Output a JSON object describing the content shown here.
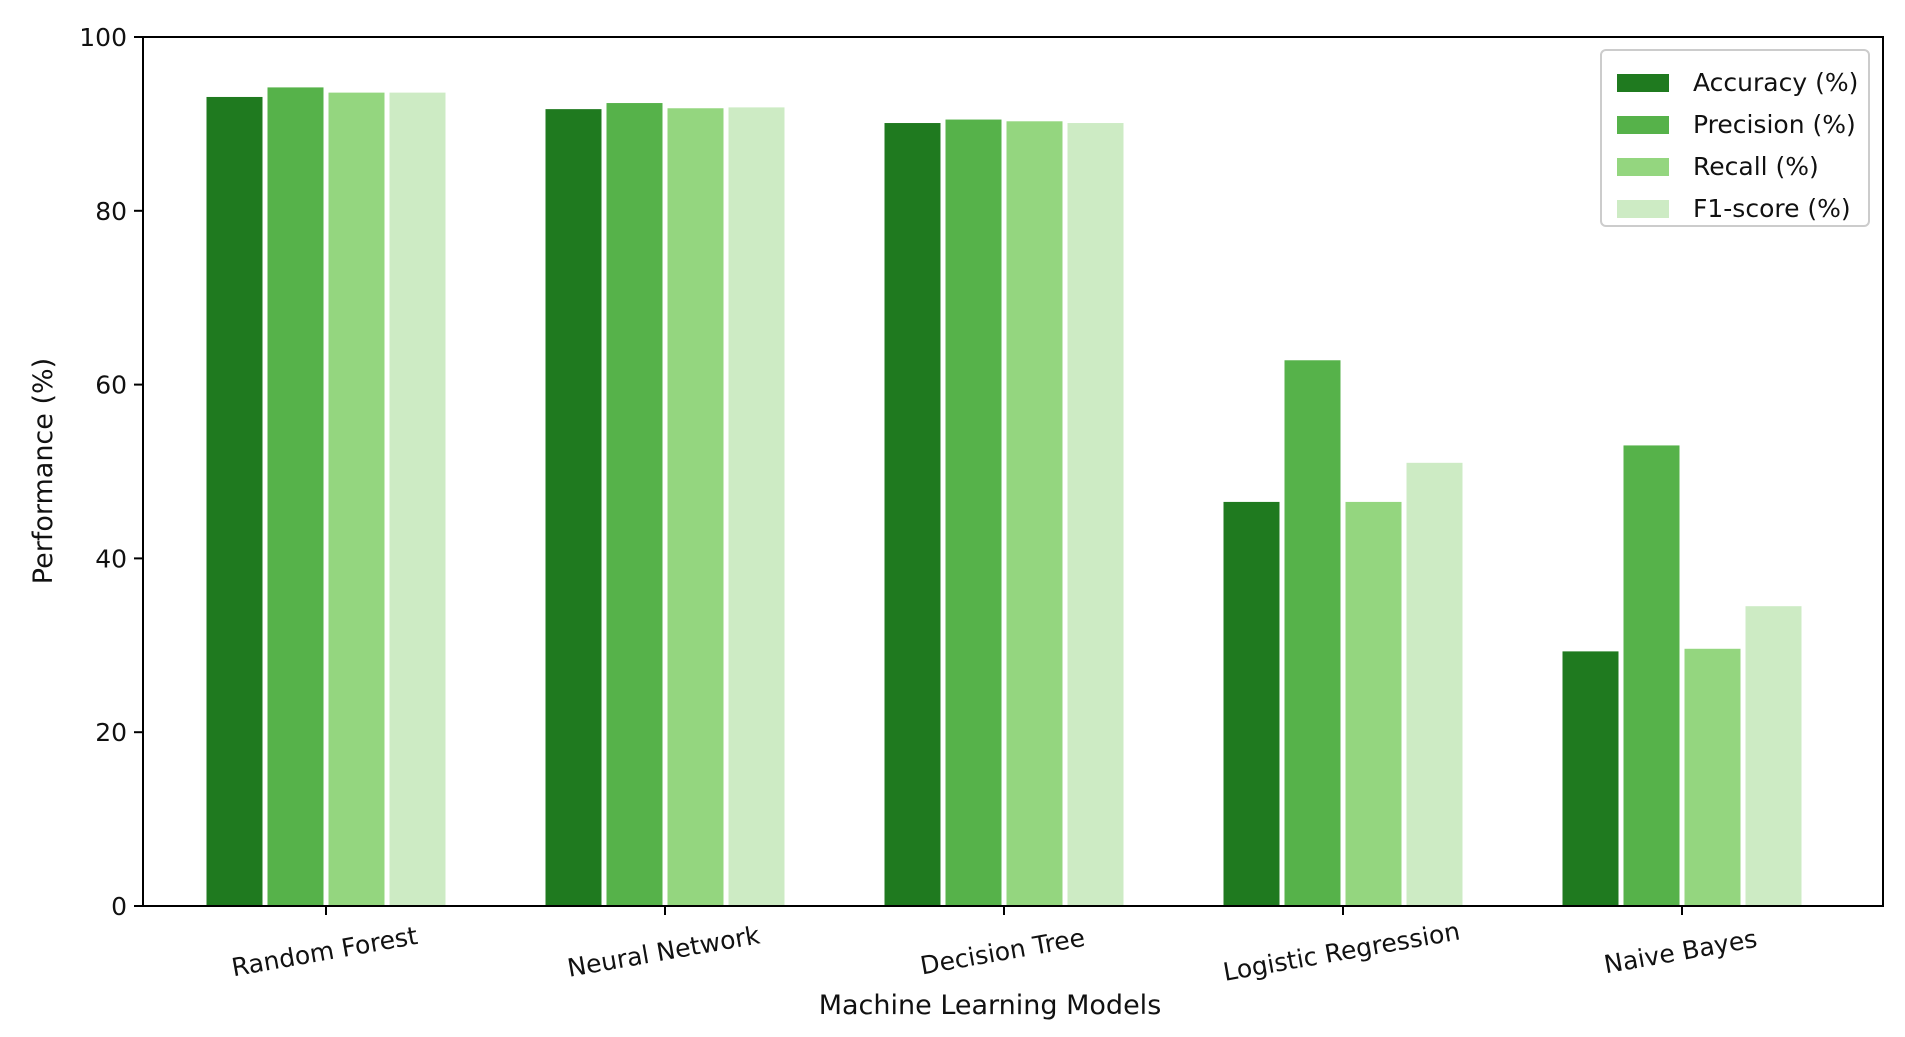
{
  "chart_data": {
    "type": "bar",
    "title": "",
    "xlabel": "Machine Learning Models",
    "ylabel": "Performance (%)",
    "ylim": [
      0,
      100
    ],
    "yticks": [
      "0",
      "20",
      "40",
      "60",
      "80",
      "100"
    ],
    "categories": [
      "Random Forest",
      "Neural Network",
      "Decision Tree",
      "Logistic Regression",
      "Naive Bayes"
    ],
    "series": [
      {
        "name": "Accuracy (%)",
        "color": "#1f7a1f",
        "values": [
          93.1,
          91.7,
          90.1,
          46.5,
          29.3
        ]
      },
      {
        "name": "Precision (%)",
        "color": "#56b24a",
        "values": [
          94.2,
          92.4,
          90.5,
          62.8,
          53.0
        ]
      },
      {
        "name": "Recall (%)",
        "color": "#94d67f",
        "values": [
          93.6,
          91.8,
          90.3,
          46.5,
          29.6
        ]
      },
      {
        "name": "F1-score (%)",
        "color": "#cdebc4",
        "values": [
          93.6,
          91.9,
          90.1,
          51.0,
          34.5
        ]
      }
    ],
    "legend_position": "top-right",
    "grid": false
  }
}
